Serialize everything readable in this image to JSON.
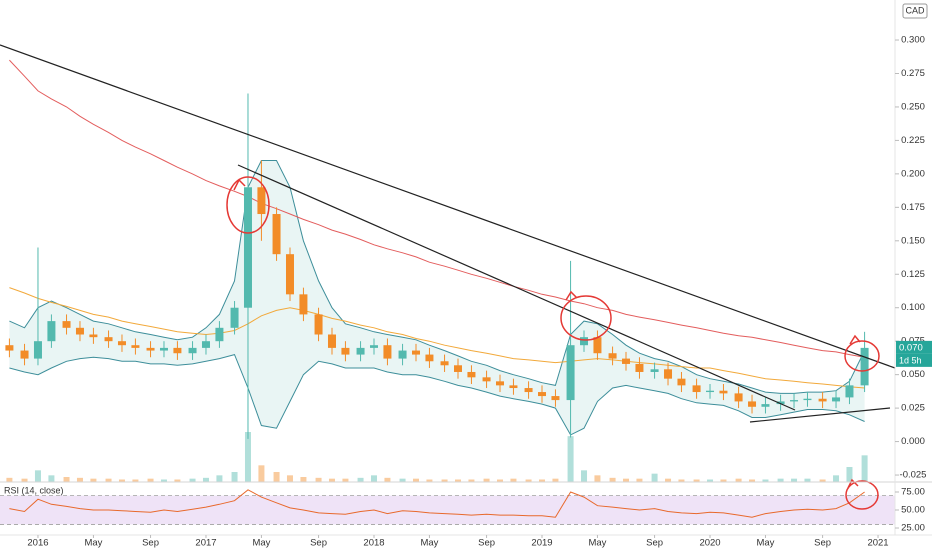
{
  "chart_data": [
    {
      "type": "candlestick",
      "currency": "CAD",
      "x": [
        2015.83,
        2015.92,
        2016.0,
        2016.08,
        2016.17,
        2016.25,
        2016.33,
        2016.42,
        2016.5,
        2016.58,
        2016.67,
        2016.75,
        2016.83,
        2016.92,
        2017.0,
        2017.08,
        2017.17,
        2017.25,
        2017.33,
        2017.42,
        2017.5,
        2017.58,
        2017.67,
        2017.75,
        2017.83,
        2017.92,
        2018.0,
        2018.08,
        2018.17,
        2018.25,
        2018.33,
        2018.42,
        2018.5,
        2018.58,
        2018.67,
        2018.75,
        2018.83,
        2018.92,
        2019.0,
        2019.08,
        2019.17,
        2019.25,
        2019.33,
        2019.42,
        2019.5,
        2019.58,
        2019.67,
        2019.75,
        2019.83,
        2019.92,
        2020.0,
        2020.08,
        2020.17,
        2020.25,
        2020.33,
        2020.42,
        2020.5,
        2020.58,
        2020.67,
        2020.75,
        2020.83,
        2020.92
      ],
      "open": [
        0.072,
        0.068,
        0.062,
        0.075,
        0.09,
        0.085,
        0.08,
        0.078,
        0.075,
        0.072,
        0.07,
        0.068,
        0.07,
        0.066,
        0.07,
        0.075,
        0.085,
        0.1,
        0.19,
        0.17,
        0.14,
        0.11,
        0.095,
        0.08,
        0.07,
        0.065,
        0.07,
        0.072,
        0.062,
        0.068,
        0.065,
        0.06,
        0.057,
        0.052,
        0.048,
        0.045,
        0.042,
        0.04,
        0.037,
        0.034,
        0.031,
        0.072,
        0.078,
        0.066,
        0.062,
        0.058,
        0.052,
        0.054,
        0.047,
        0.042,
        0.037,
        0.038,
        0.036,
        0.03,
        0.026,
        0.028,
        0.03,
        0.031,
        0.032,
        0.03,
        0.033,
        0.042
      ],
      "high": [
        0.077,
        0.073,
        0.145,
        0.095,
        0.095,
        0.09,
        0.085,
        0.083,
        0.08,
        0.077,
        0.075,
        0.075,
        0.075,
        0.075,
        0.08,
        0.09,
        0.105,
        0.26,
        0.21,
        0.175,
        0.145,
        0.115,
        0.1,
        0.085,
        0.075,
        0.075,
        0.077,
        0.077,
        0.073,
        0.073,
        0.07,
        0.065,
        0.062,
        0.057,
        0.053,
        0.05,
        0.047,
        0.045,
        0.042,
        0.039,
        0.135,
        0.083,
        0.083,
        0.071,
        0.067,
        0.063,
        0.059,
        0.059,
        0.052,
        0.047,
        0.043,
        0.043,
        0.041,
        0.035,
        0.033,
        0.035,
        0.036,
        0.037,
        0.037,
        0.038,
        0.047,
        0.082
      ],
      "low": [
        0.063,
        0.057,
        0.057,
        0.07,
        0.08,
        0.075,
        0.073,
        0.07,
        0.067,
        0.065,
        0.063,
        0.063,
        0.061,
        0.061,
        0.065,
        0.07,
        0.08,
        0.002,
        0.15,
        0.135,
        0.105,
        0.09,
        0.075,
        0.065,
        0.06,
        0.06,
        0.065,
        0.057,
        0.057,
        0.06,
        0.055,
        0.052,
        0.047,
        0.043,
        0.04,
        0.037,
        0.035,
        0.032,
        0.029,
        0.026,
        0.003,
        0.067,
        0.061,
        0.057,
        0.053,
        0.047,
        0.047,
        0.042,
        0.037,
        0.032,
        0.032,
        0.031,
        0.025,
        0.021,
        0.021,
        0.023,
        0.025,
        0.026,
        0.025,
        0.025,
        0.028,
        0.037
      ],
      "close": [
        0.068,
        0.062,
        0.075,
        0.09,
        0.085,
        0.08,
        0.078,
        0.075,
        0.072,
        0.07,
        0.068,
        0.07,
        0.066,
        0.07,
        0.075,
        0.085,
        0.1,
        0.19,
        0.17,
        0.14,
        0.11,
        0.095,
        0.08,
        0.07,
        0.065,
        0.07,
        0.072,
        0.062,
        0.068,
        0.065,
        0.06,
        0.057,
        0.052,
        0.048,
        0.045,
        0.042,
        0.04,
        0.037,
        0.034,
        0.031,
        0.072,
        0.078,
        0.066,
        0.062,
        0.058,
        0.052,
        0.054,
        0.047,
        0.042,
        0.037,
        0.038,
        0.036,
        0.03,
        0.026,
        0.028,
        0.03,
        0.031,
        0.032,
        0.03,
        0.033,
        0.042,
        0.07
      ],
      "volume": [
        5,
        4,
        14,
        8,
        6,
        5,
        4,
        4,
        3,
        3,
        4,
        3,
        3,
        4,
        5,
        8,
        12,
        60,
        20,
        12,
        8,
        6,
        5,
        4,
        4,
        5,
        8,
        5,
        4,
        4,
        3,
        3,
        3,
        3,
        4,
        3,
        4,
        3,
        3,
        4,
        55,
        14,
        8,
        5,
        4,
        4,
        10,
        4,
        3,
        3,
        3,
        3,
        4,
        3,
        3,
        4,
        4,
        4,
        3,
        8,
        18,
        32
      ],
      "up_color": "#53b9ae",
      "down_color": "#f28c28",
      "moving_averages": [
        {
          "color": "#e35d5d",
          "values": [
            0.285,
            0.273,
            0.262,
            0.256,
            0.25,
            0.243,
            0.237,
            0.231,
            0.225,
            0.22,
            0.215,
            0.21,
            0.205,
            0.2,
            0.195,
            0.191,
            0.187,
            0.183,
            0.178,
            0.174,
            0.17,
            0.166,
            0.162,
            0.158,
            0.155,
            0.151,
            0.147,
            0.144,
            0.141,
            0.138,
            0.134,
            0.131,
            0.128,
            0.125,
            0.122,
            0.119,
            0.116,
            0.113,
            0.11,
            0.108,
            0.105,
            0.103,
            0.1,
            0.098,
            0.095,
            0.093,
            0.091,
            0.089,
            0.087,
            0.085,
            0.083,
            0.081,
            0.079,
            0.078,
            0.076,
            0.074,
            0.072,
            0.07,
            0.068,
            0.067,
            0.065,
            0.063
          ]
        },
        {
          "color": "#f2a93b",
          "values": [
            0.115,
            0.111,
            0.107,
            0.104,
            0.101,
            0.098,
            0.095,
            0.093,
            0.09,
            0.088,
            0.086,
            0.084,
            0.082,
            0.081,
            0.08,
            0.081,
            0.083,
            0.088,
            0.094,
            0.098,
            0.1,
            0.098,
            0.095,
            0.092,
            0.09,
            0.087,
            0.085,
            0.082,
            0.08,
            0.077,
            0.075,
            0.072,
            0.07,
            0.068,
            0.066,
            0.064,
            0.062,
            0.061,
            0.06,
            0.059,
            0.06,
            0.061,
            0.062,
            0.061,
            0.06,
            0.059,
            0.058,
            0.057,
            0.056,
            0.055,
            0.055,
            0.053,
            0.051,
            0.049,
            0.047,
            0.046,
            0.045,
            0.044,
            0.043,
            0.042,
            0.041,
            0.04
          ]
        }
      ],
      "bollinger": {
        "color": "#3d8e9a",
        "fill": "#dff1ef",
        "upper": [
          0.09,
          0.085,
          0.1,
          0.105,
          0.1,
          0.095,
          0.09,
          0.088,
          0.085,
          0.082,
          0.08,
          0.078,
          0.076,
          0.078,
          0.085,
          0.095,
          0.12,
          0.19,
          0.21,
          0.21,
          0.19,
          0.15,
          0.12,
          0.1,
          0.088,
          0.085,
          0.082,
          0.08,
          0.078,
          0.076,
          0.072,
          0.068,
          0.064,
          0.06,
          0.057,
          0.053,
          0.05,
          0.047,
          0.044,
          0.042,
          0.08,
          0.09,
          0.088,
          0.08,
          0.072,
          0.066,
          0.062,
          0.06,
          0.056,
          0.05,
          0.047,
          0.045,
          0.043,
          0.04,
          0.037,
          0.036,
          0.036,
          0.037,
          0.037,
          0.038,
          0.045,
          0.068
        ],
        "lower": [
          0.055,
          0.052,
          0.05,
          0.055,
          0.06,
          0.062,
          0.063,
          0.062,
          0.06,
          0.06,
          0.058,
          0.058,
          0.057,
          0.058,
          0.06,
          0.062,
          0.065,
          0.04,
          0.012,
          0.01,
          0.03,
          0.05,
          0.06,
          0.058,
          0.055,
          0.055,
          0.055,
          0.052,
          0.05,
          0.05,
          0.048,
          0.045,
          0.042,
          0.04,
          0.037,
          0.034,
          0.032,
          0.03,
          0.028,
          0.025,
          0.005,
          0.01,
          0.03,
          0.04,
          0.042,
          0.04,
          0.038,
          0.036,
          0.032,
          0.029,
          0.028,
          0.027,
          0.023,
          0.018,
          0.018,
          0.02,
          0.022,
          0.024,
          0.024,
          0.023,
          0.02,
          0.015
        ]
      },
      "last_price": {
        "value": 0.07,
        "label": "0.070",
        "color": "#26a69a"
      },
      "countdown": "1d 5h",
      "xlim": [
        2015.774,
        2021.101
      ],
      "ylim": [
        -0.0302,
        0.3299
      ],
      "yticks": [
        {
          "value": 0.3,
          "label": "0.300"
        },
        {
          "value": 0.275,
          "label": "0.275"
        },
        {
          "value": 0.25,
          "label": "0.250"
        },
        {
          "value": 0.225,
          "label": "0.225"
        },
        {
          "value": 0.2,
          "label": "0.200"
        },
        {
          "value": 0.175,
          "label": "0.175"
        },
        {
          "value": 0.15,
          "label": "0.150"
        },
        {
          "value": 0.125,
          "label": "0.125"
        },
        {
          "value": 0.1,
          "label": "0.100"
        },
        {
          "value": 0.075,
          "label": "0.075"
        },
        {
          "value": 0.05,
          "label": "0.050"
        },
        {
          "value": 0.025,
          "label": "0.025"
        },
        {
          "value": 0,
          "label": "0.000"
        },
        {
          "value": -0.025,
          "label": "-0.025"
        }
      ]
    },
    {
      "type": "line",
      "title": "RSI (14, close)",
      "color": "#e8692c",
      "x": [
        2015.83,
        2015.92,
        2016.0,
        2016.08,
        2016.17,
        2016.25,
        2016.33,
        2016.42,
        2016.5,
        2016.58,
        2016.67,
        2016.75,
        2016.83,
        2016.92,
        2017.0,
        2017.08,
        2017.17,
        2017.25,
        2017.33,
        2017.42,
        2017.5,
        2017.58,
        2017.67,
        2017.75,
        2017.83,
        2017.92,
        2018.0,
        2018.08,
        2018.17,
        2018.25,
        2018.33,
        2018.42,
        2018.5,
        2018.58,
        2018.67,
        2018.75,
        2018.83,
        2018.92,
        2019.0,
        2019.08,
        2019.17,
        2019.25,
        2019.33,
        2019.42,
        2019.5,
        2019.58,
        2019.67,
        2019.75,
        2019.83,
        2019.92,
        2020.0,
        2020.08,
        2020.17,
        2020.25,
        2020.33,
        2020.42,
        2020.5,
        2020.58,
        2020.67,
        2020.75,
        2020.83,
        2020.92
      ],
      "values": [
        52,
        48,
        65,
        58,
        55,
        52,
        50,
        50,
        49,
        48,
        47,
        50,
        48,
        51,
        54,
        58,
        63,
        78,
        68,
        60,
        53,
        50,
        46,
        45,
        44,
        48,
        50,
        45,
        49,
        48,
        46,
        45,
        44,
        43,
        44,
        43,
        43,
        42,
        42,
        40,
        75,
        68,
        56,
        54,
        52,
        50,
        52,
        48,
        46,
        45,
        47,
        46,
        43,
        40,
        45,
        48,
        50,
        51,
        50,
        52,
        60,
        75
      ],
      "band": [
        30,
        70
      ],
      "band_color": "#efe3f7",
      "xlim": [
        2015.774,
        2021.101
      ],
      "ylim": [
        15.3,
        88.9
      ],
      "yticks": [
        {
          "value": 75,
          "label": "75.00"
        },
        {
          "value": 50,
          "label": "50.00"
        },
        {
          "value": 25,
          "label": "25.00"
        }
      ],
      "xticks": [
        2016,
        {
          "value": 2016.33,
          "label": "May"
        },
        {
          "value": 2016.67,
          "label": "Sep"
        },
        2017,
        {
          "value": 2017.33,
          "label": "May"
        },
        {
          "value": 2017.67,
          "label": "Sep"
        },
        2018,
        {
          "value": 2018.33,
          "label": "May"
        },
        {
          "value": 2018.67,
          "label": "Sep"
        },
        2019,
        {
          "value": 2019.33,
          "label": "May"
        },
        {
          "value": 2019.67,
          "label": "Sep"
        },
        2020,
        {
          "value": 2020.33,
          "label": "May"
        },
        {
          "value": 2020.67,
          "label": "Sep"
        },
        2021
      ]
    }
  ]
}
